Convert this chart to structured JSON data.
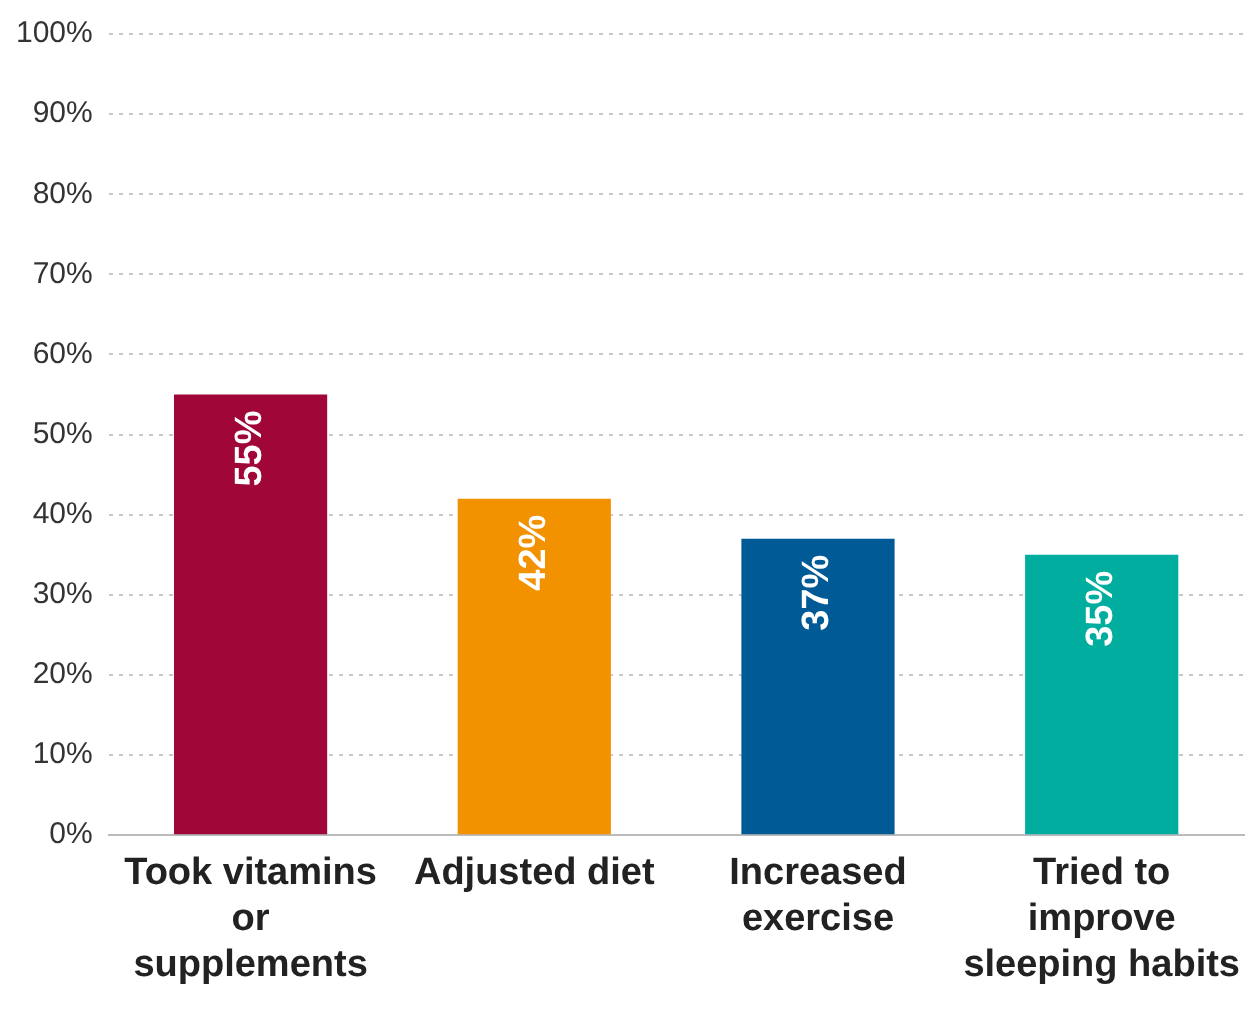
{
  "chart_data": {
    "type": "bar",
    "categories": [
      "Took vitamins or supplements",
      "Adjusted diet",
      "Increased exercise",
      "Tried to improve sleeping habits"
    ],
    "values": [
      55,
      42,
      37,
      35
    ],
    "colors": [
      "#a00738",
      "#f39200",
      "#005a96",
      "#00ad9f"
    ],
    "value_labels": [
      "55%",
      "42%",
      "37%",
      "35%"
    ],
    "ylim": [
      0,
      100
    ],
    "yticks": [
      {
        "value": 0,
        "label": "0%"
      },
      {
        "value": 10,
        "label": "10%"
      },
      {
        "value": 20,
        "label": "20%"
      },
      {
        "value": 30,
        "label": "30%"
      },
      {
        "value": 40,
        "label": "40%"
      },
      {
        "value": 50,
        "label": "50%"
      },
      {
        "value": 60,
        "label": "60%"
      },
      {
        "value": 70,
        "label": "70%"
      },
      {
        "value": 80,
        "label": "80%"
      },
      {
        "value": 90,
        "label": "90%"
      },
      {
        "value": 100,
        "label": "100%"
      }
    ],
    "grid": "y",
    "legend": false
  }
}
